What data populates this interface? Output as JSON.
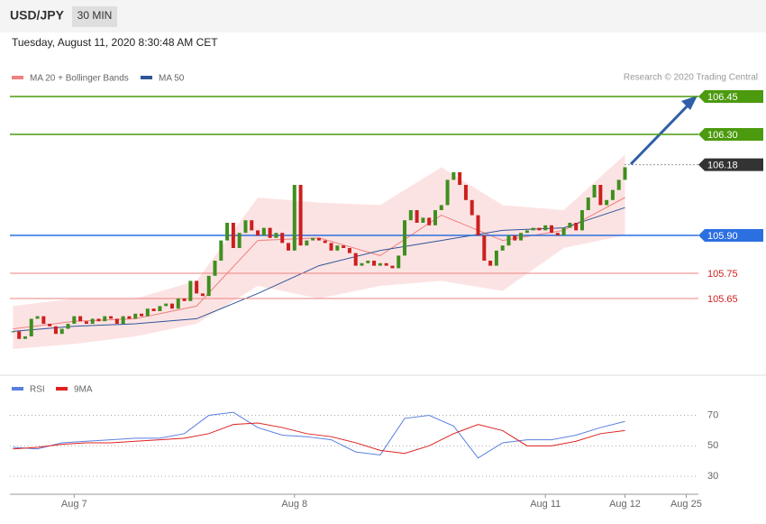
{
  "header": {
    "symbol": "USD/JPY",
    "interval": "30 MIN",
    "timestamp": "Tuesday, August 11, 2020 8:30:48 AM CET"
  },
  "chart_data": [
    {
      "type": "candlestick",
      "credit": "Research © 2020 Trading Central",
      "xlim": [
        -0.5,
        112
      ],
      "ylim": [
        105.35,
        106.6
      ],
      "xticks": [
        {
          "value": 10,
          "label": "Aug 7"
        },
        {
          "value": 46,
          "label": "Aug 8"
        },
        {
          "value": 87,
          "label": "Aug 11"
        },
        {
          "value": 100,
          "label": "Aug 12"
        },
        {
          "value": 110,
          "label": "Aug 25"
        }
      ],
      "closes": [
        105.52,
        105.49,
        105.5,
        105.57,
        105.58,
        105.55,
        105.54,
        105.51,
        105.53,
        105.55,
        105.58,
        105.56,
        105.55,
        105.57,
        105.56,
        105.58,
        105.57,
        105.55,
        105.58,
        105.57,
        105.59,
        105.58,
        105.61,
        105.6,
        105.62,
        105.63,
        105.61,
        105.65,
        105.64,
        105.72,
        105.67,
        105.66,
        105.74,
        105.8,
        105.88,
        105.95,
        105.85,
        105.91,
        105.96,
        105.92,
        105.9,
        105.93,
        105.89,
        105.91,
        105.87,
        105.84,
        106.1,
        105.86,
        105.88,
        105.89,
        105.88,
        105.87,
        105.84,
        105.86,
        105.85,
        105.83,
        105.78,
        105.79,
        105.8,
        105.78,
        105.79,
        105.78,
        105.77,
        105.82,
        105.96,
        106.0,
        105.95,
        105.97,
        105.94,
        106.0,
        106.02,
        106.12,
        106.15,
        106.1,
        106.04,
        105.98,
        105.9,
        105.8,
        105.78,
        105.84,
        105.86,
        105.9,
        105.88,
        105.91,
        105.92,
        105.93,
        105.92,
        105.94,
        105.91,
        105.9,
        105.93,
        105.95,
        105.92,
        106.0,
        106.05,
        106.1,
        106.02,
        106.04,
        106.08,
        106.12,
        106.17
      ],
      "up_color": "#3f8f1f",
      "down_color": "#cc1f1f",
      "overlay_x": [
        0,
        10,
        20,
        30,
        40,
        50,
        60,
        70,
        80,
        90,
        100
      ],
      "series": [
        {
          "name": "MA 20 + Bollinger Bands",
          "color": "#f08080",
          "values": [
            105.53,
            105.56,
            105.57,
            105.62,
            105.88,
            105.89,
            105.82,
            105.98,
            105.88,
            105.92,
            106.05
          ],
          "upper": [
            105.62,
            105.65,
            105.65,
            105.72,
            106.05,
            106.03,
            106.02,
            106.17,
            106.02,
            106.0,
            106.22
          ],
          "lower": [
            105.45,
            105.47,
            105.5,
            105.55,
            105.7,
            105.65,
            105.7,
            105.72,
            105.68,
            105.85,
            105.9
          ]
        },
        {
          "name": "MA 50",
          "color": "#2f5597",
          "values": [
            105.52,
            105.54,
            105.55,
            105.57,
            105.67,
            105.78,
            105.84,
            105.88,
            105.92,
            105.93,
            106.01
          ]
        }
      ],
      "levels": [
        {
          "value": 106.45,
          "label": "106.45",
          "color": "#4c9a0e",
          "style": "tag"
        },
        {
          "value": 106.3,
          "label": "106.30",
          "color": "#4c9a0e",
          "style": "tag"
        },
        {
          "value": 106.18,
          "label": "106.18",
          "color": "#333333",
          "style": "dotted"
        },
        {
          "value": 105.9,
          "label": "105.90",
          "color": "#2c6fe0",
          "style": "tag"
        },
        {
          "value": 105.75,
          "label": "105.75",
          "color": "#f08080",
          "style": "text"
        },
        {
          "value": 105.65,
          "label": "105.65",
          "color": "#f08080",
          "style": "text"
        }
      ]
    },
    {
      "type": "line",
      "xlim": [
        -0.5,
        112
      ],
      "ylim": [
        20,
        94
      ],
      "yticks": [
        30,
        50,
        70
      ],
      "x": [
        0,
        4,
        8,
        12,
        16,
        20,
        24,
        28,
        32,
        36,
        40,
        44,
        48,
        52,
        56,
        60,
        64,
        68,
        72,
        76,
        80,
        84,
        88,
        92,
        96,
        100
      ],
      "series": [
        {
          "name": "RSI",
          "color": "#5b7fe0",
          "values": [
            49,
            48,
            52,
            53,
            54,
            55,
            55,
            58,
            70,
            72,
            62,
            57,
            56,
            54,
            46,
            44,
            68,
            70,
            63,
            42,
            52,
            54,
            54,
            57,
            62,
            66
          ]
        },
        {
          "name": "9MA",
          "color": "#e02020",
          "values": [
            48,
            49,
            51,
            52,
            52,
            53,
            54,
            55,
            58,
            64,
            65,
            62,
            58,
            56,
            52,
            47,
            45,
            50,
            58,
            64,
            60,
            50,
            50,
            53,
            58,
            60
          ]
        }
      ]
    }
  ]
}
